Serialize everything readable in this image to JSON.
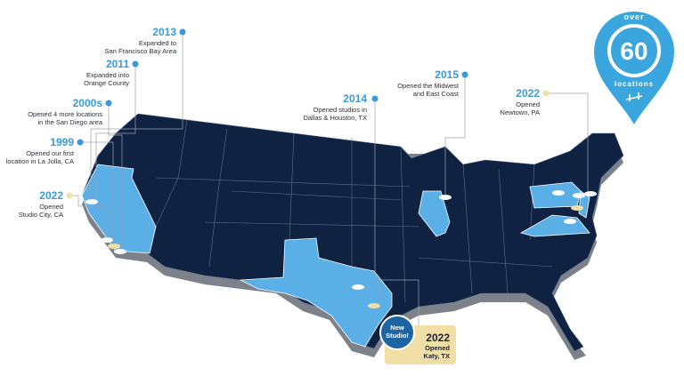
{
  "badge": {
    "top": "over",
    "number": "60",
    "bottom": "locations"
  },
  "milestones": [
    {
      "year": "2013",
      "lines": [
        "Expanded to",
        "San Francisco Bay Area"
      ]
    },
    {
      "year": "2011",
      "lines": [
        "Expanded into",
        "Orange County"
      ]
    },
    {
      "year": "2000s",
      "lines": [
        "Opened 4 more locations",
        "in the San Diego area"
      ]
    },
    {
      "year": "1999",
      "lines": [
        "Opened our first",
        "location in La Jolla, CA"
      ]
    },
    {
      "year": "2022",
      "lines": [
        "Opened",
        "Studio City, CA"
      ]
    },
    {
      "year": "2014",
      "lines": [
        "Opened studios in",
        "Dallas & Houston, TX"
      ]
    },
    {
      "year": "2015",
      "lines": [
        "Opened the Midwest",
        "and East Coast"
      ]
    },
    {
      "year": "2022",
      "lines": [
        "Opened",
        "Newtown, PA"
      ]
    }
  ],
  "callout": {
    "badge_lines": [
      "New",
      "Studio!"
    ],
    "year": "2022",
    "lines": [
      "Opened",
      "Katy, TX"
    ]
  }
}
